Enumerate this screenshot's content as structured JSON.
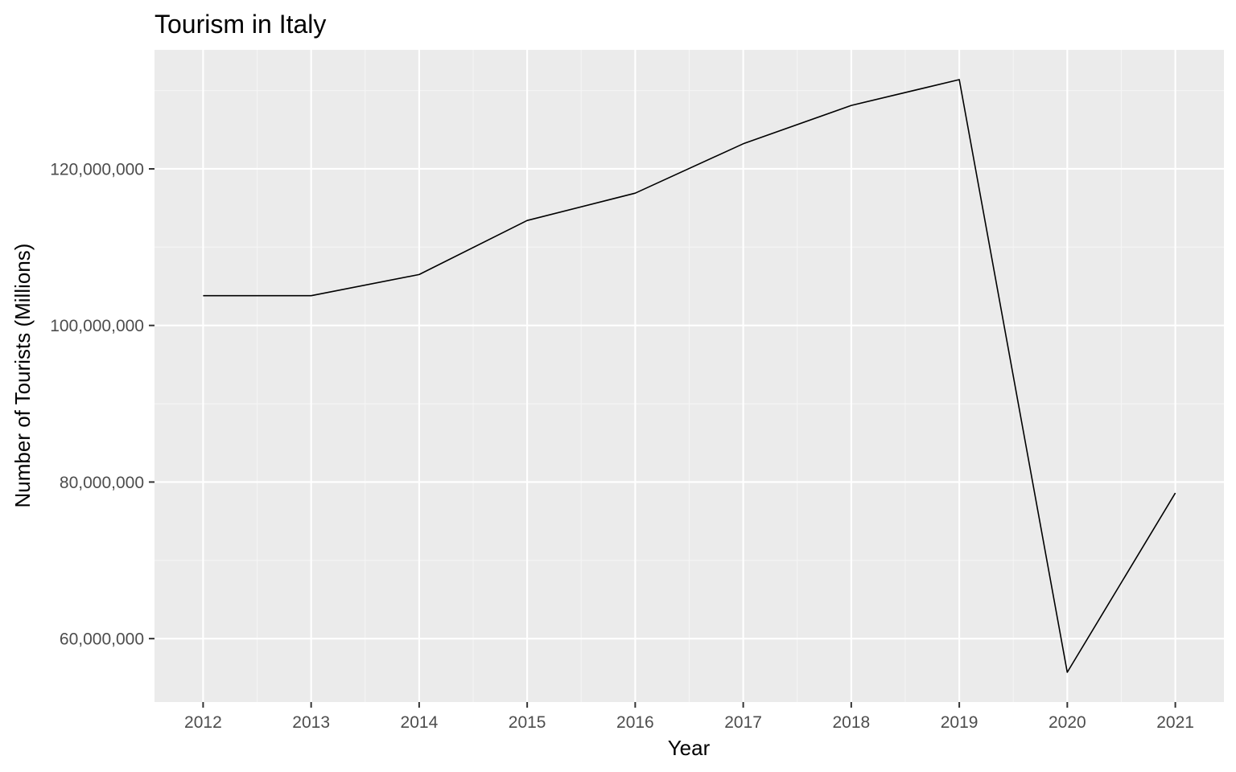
{
  "chart_data": {
    "type": "line",
    "title": "Tourism in Italy",
    "xlabel": "Year",
    "ylabel": "Number of Tourists (Millions)",
    "x": [
      2012,
      2013,
      2014,
      2015,
      2016,
      2017,
      2018,
      2019,
      2020,
      2021
    ],
    "series": [
      {
        "values": [
          103800000,
          103800000,
          106500000,
          113400000,
          116900000,
          123200000,
          128100000,
          131400000,
          55700000,
          78600000
        ]
      }
    ],
    "xlim": [
      2011.55,
      2021.45
    ],
    "ylim": [
      51900000,
      135200000
    ],
    "xticks": [
      2012,
      2013,
      2014,
      2015,
      2016,
      2017,
      2018,
      2019,
      2020,
      2021
    ],
    "xtick_labels": [
      "2012",
      "2013",
      "2014",
      "2015",
      "2016",
      "2017",
      "2018",
      "2019",
      "2020",
      "2021"
    ],
    "yticks": [
      60000000,
      80000000,
      100000000,
      120000000
    ],
    "ytick_labels": [
      "60,000,000",
      "80,000,000",
      "100,000,000",
      "120,000,000"
    ],
    "grid": true,
    "legend": "none",
    "colors": {
      "panel": "#ebebeb",
      "grid_major": "#ffffff",
      "grid_minor": "#f5f5f5",
      "line": "#000000",
      "tick_label": "#4d4d4d",
      "tick_mark": "#333333"
    }
  }
}
